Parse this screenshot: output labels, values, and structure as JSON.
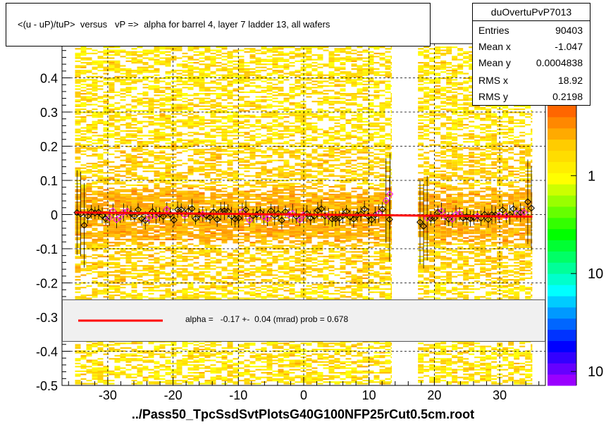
{
  "title": "<(u - uP)/tuP>  versus   vP =>  alpha for barrel 4, layer 7 ladder 13, all wafers",
  "stats": {
    "name": "duOvertuPvP7013",
    "rows": [
      {
        "label": "Entries",
        "value": "90403"
      },
      {
        "label": "Mean x",
        "value": "-1.047"
      },
      {
        "label": "Mean y",
        "value": "0.0004838"
      },
      {
        "label": "RMS x",
        "value": "18.92"
      },
      {
        "label": "RMS y",
        "value": "0.2198"
      }
    ]
  },
  "fit": {
    "label": "alpha =   -0.17 +-  0.04 (mrad) prob = 0.678",
    "line_color": "#ff0000"
  },
  "x_axis_title": "../Pass50_TpcSsdSvtPlotsG40G100NFP25rCut0.5cm.root",
  "colors": {
    "heat_low": "#ffff00",
    "heat_high": "#ff6600",
    "profile_points": "#000000",
    "profile_points_alt": "#ff00ff",
    "fit_line": "#ff0000"
  },
  "chart_data": {
    "type": "heatmap",
    "xlim": [
      -37,
      37
    ],
    "ylim": [
      -0.5,
      0.5
    ],
    "x_ticks": [
      -30,
      -20,
      -10,
      0,
      10,
      20,
      30
    ],
    "y_ticks": [
      -0.5,
      -0.4,
      -0.3,
      -0.2,
      -0.1,
      0,
      0.1,
      0.2,
      0.3,
      0.4
    ],
    "grid": true,
    "log_z": true,
    "z_ticks": [
      {
        "label": "1",
        "frac": 0.75
      },
      {
        "label": "10",
        "frac": 0.4
      },
      {
        "label": "10",
        "frac": 0.05
      }
    ],
    "occupied_x_ranges": [
      [
        -35,
        13.5
      ],
      [
        17.5,
        35
      ]
    ],
    "fit_line": {
      "slope": -0.00017,
      "intercept": 0.0
    }
  }
}
